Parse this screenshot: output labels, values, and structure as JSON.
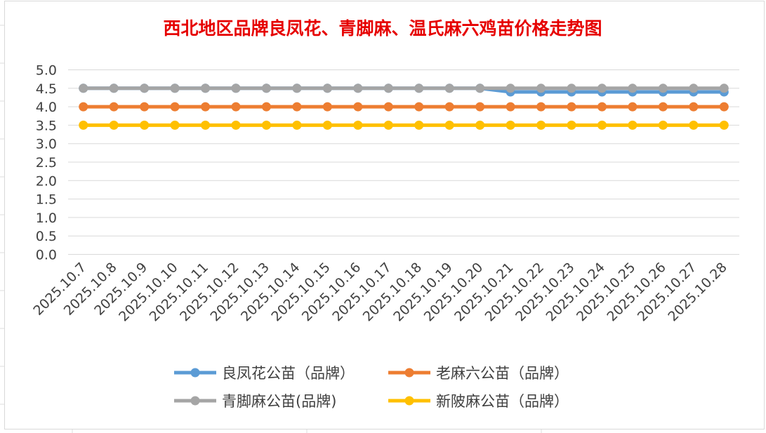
{
  "chart_data": {
    "type": "line",
    "title": "西北地区品牌良凤花、青脚麻、温氏麻六鸡苗价格走势图",
    "title_color": "#e60000",
    "xlabel": "",
    "ylabel": "",
    "ylim": [
      0,
      5
    ],
    "y_ticks": [
      "0.0",
      "0.5",
      "1.0",
      "1.5",
      "2.0",
      "2.5",
      "3.0",
      "3.5",
      "4.0",
      "4.5",
      "5.0"
    ],
    "grid": true,
    "legend_position": "bottom",
    "categories": [
      "2025.10.7",
      "2025.10.8",
      "2025.10.9",
      "2025.10.10",
      "2025.10.11",
      "2025.10.12",
      "2025.10.13",
      "2025.10.14",
      "2025.10.15",
      "2025.10.16",
      "2025.10.17",
      "2025.10.18",
      "2025.10.19",
      "2025.10.20",
      "2025.10.21",
      "2025.10.22",
      "2025.10.23",
      "2025.10.24",
      "2025.10.25",
      "2025.10.26",
      "2025.10.27",
      "2025.10.28"
    ],
    "series": [
      {
        "name": "良凤花公苗（品牌）",
        "color": "#5b9bd5",
        "values": [
          4.5,
          4.5,
          4.5,
          4.5,
          4.5,
          4.5,
          4.5,
          4.5,
          4.5,
          4.5,
          4.5,
          4.5,
          4.5,
          4.5,
          4.4,
          4.4,
          4.4,
          4.4,
          4.4,
          4.4,
          4.4,
          4.4
        ]
      },
      {
        "name": "老麻六公苗（品牌）",
        "color": "#ed7d31",
        "values": [
          4.0,
          4.0,
          4.0,
          4.0,
          4.0,
          4.0,
          4.0,
          4.0,
          4.0,
          4.0,
          4.0,
          4.0,
          4.0,
          4.0,
          4.0,
          4.0,
          4.0,
          4.0,
          4.0,
          4.0,
          4.0,
          4.0
        ]
      },
      {
        "name": "青脚麻公苗(品牌)",
        "color": "#a5a5a5",
        "values": [
          4.5,
          4.5,
          4.5,
          4.5,
          4.5,
          4.5,
          4.5,
          4.5,
          4.5,
          4.5,
          4.5,
          4.5,
          4.5,
          4.5,
          4.5,
          4.5,
          4.5,
          4.5,
          4.5,
          4.5,
          4.5,
          4.5
        ]
      },
      {
        "name": "新陂麻公苗（品牌）",
        "color": "#ffc000",
        "values": [
          3.5,
          3.5,
          3.5,
          3.5,
          3.5,
          3.5,
          3.5,
          3.5,
          3.5,
          3.5,
          3.5,
          3.5,
          3.5,
          3.5,
          3.5,
          3.5,
          3.5,
          3.5,
          3.5,
          3.5,
          3.5,
          3.5
        ]
      }
    ],
    "draw_order": [
      0,
      1,
      3,
      2
    ],
    "legend_order": [
      0,
      1,
      2,
      3
    ]
  }
}
